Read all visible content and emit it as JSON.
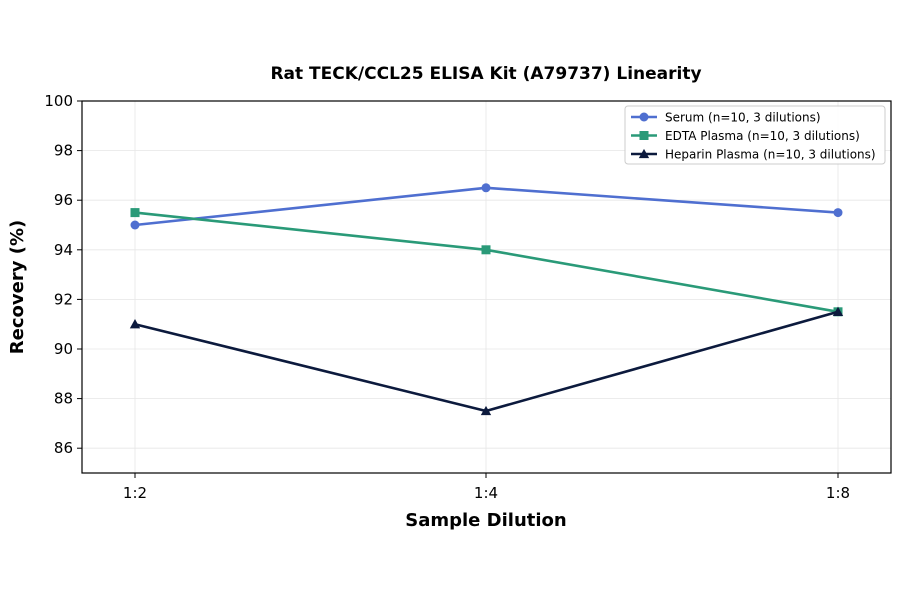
{
  "chart_data": {
    "type": "line",
    "title": "Rat TECK/CCL25 ELISA Kit (A79737) Linearity",
    "xlabel": "Sample Dilution",
    "ylabel": "Recovery (%)",
    "categories": [
      "1:2",
      "1:4",
      "1:8"
    ],
    "ylim": [
      85,
      100
    ],
    "yticks": [
      86,
      88,
      90,
      92,
      94,
      96,
      98,
      100
    ],
    "grid": true,
    "legend_position": "top-right",
    "series": [
      {
        "name": "Serum (n=10, 3 dilutions)",
        "values": [
          95.0,
          96.5,
          95.5
        ],
        "color": "#4f6fd0",
        "marker": "circle"
      },
      {
        "name": "EDTA Plasma (n=10, 3 dilutions)",
        "values": [
          95.5,
          94.0,
          91.5
        ],
        "color": "#2a9a78",
        "marker": "square"
      },
      {
        "name": "Heparin Plasma (n=10, 3 dilutions)",
        "values": [
          91.0,
          87.5,
          91.5
        ],
        "color": "#0c1a3d",
        "marker": "triangle"
      }
    ]
  }
}
